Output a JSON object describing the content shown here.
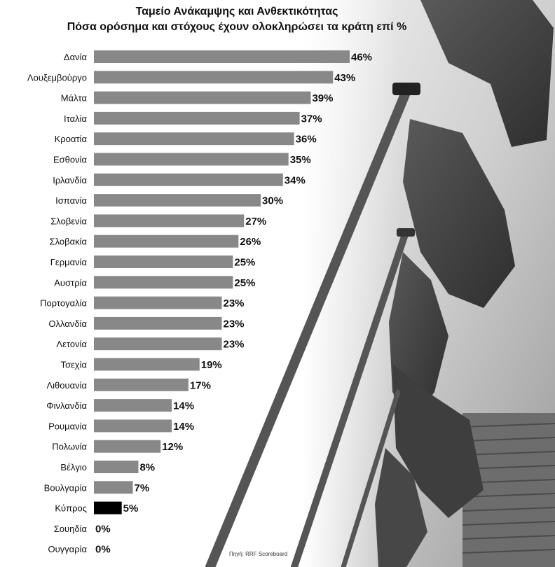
{
  "title_line1": "Ταμείο Ανάκαμψης και Ανθεκτικότητας",
  "title_line2": "Πόσα ορόσημα και στόχους έχουν ολοκληρώσει τα κράτη επί %",
  "source": "Πηγή: RRF Scoreboard",
  "colors": {
    "bar": "#888888",
    "highlight": "#000000",
    "text": "#111111"
  },
  "chart_data": {
    "type": "bar",
    "orientation": "horizontal",
    "categories": [
      "Δανία",
      "Λουξεμβούργο",
      "Μάλτα",
      "Ιταλία",
      "Κροατία",
      "Εσθονία",
      "Ιρλανδία",
      "Ισπανία",
      "Σλοβενία",
      "Σλοβακία",
      "Γερμανία",
      "Αυστρία",
      "Πορτογαλία",
      "Ολλανδία",
      "Λετονία",
      "Τσεχία",
      "Λιθουανία",
      "Φινλανδία",
      "Ρουμανία",
      "Πολωνία",
      "Βέλγιο",
      "Βουλγαρία",
      "Κύπρος",
      "Σουηδία",
      "Ουγγαρία"
    ],
    "values": [
      46,
      43,
      39,
      37,
      36,
      35,
      34,
      30,
      27,
      26,
      25,
      25,
      23,
      23,
      23,
      19,
      17,
      14,
      14,
      12,
      8,
      7,
      5,
      0,
      0
    ],
    "value_labels": [
      "46%",
      "43%",
      "39%",
      "37%",
      "36%",
      "35%",
      "34%",
      "30%",
      "27%",
      "26%",
      "25%",
      "25%",
      "23%",
      "23%",
      "23%",
      "19%",
      "17%",
      "14%",
      "14%",
      "12%",
      "8%",
      "7%",
      "5%",
      "0%",
      "0%"
    ],
    "highlight": "Κύπρος",
    "title": "Ταμείο Ανάκαμψης και Ανθεκτικότητας",
    "subtitle": "Πόσα ορόσημα και στόχους έχουν ολοκληρώσει τα κράτη επί %",
    "xlim": [
      0,
      46
    ],
    "grid": false,
    "legend": "none"
  }
}
